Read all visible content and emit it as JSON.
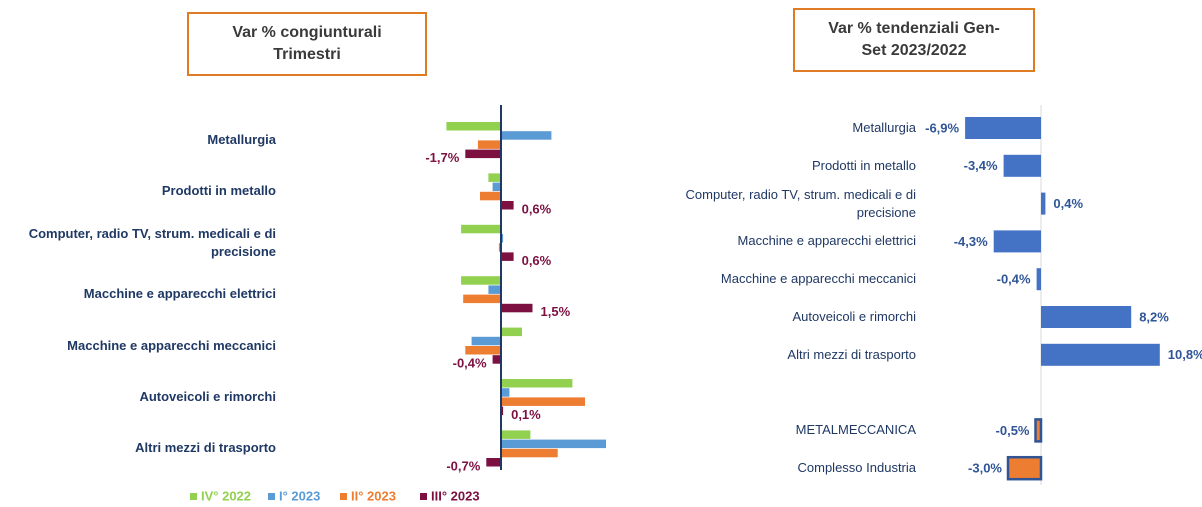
{
  "chart_data": [
    {
      "type": "bar",
      "orientation": "horizontal",
      "title": "Var % congiunturali Trimestri",
      "categories": [
        "Metallurgia",
        "Prodotti in metallo",
        "Computer, radio TV, strum. medicali e di precisione",
        "Macchine e apparecchi elettrici",
        "Macchine e apparecchi meccanici",
        "Autoveicoli e rimorchi",
        "Altri mezzi di trasporto"
      ],
      "series": [
        {
          "name": "IV° 2022",
          "color": "#92d050",
          "values": [
            -2.6,
            -0.6,
            -1.9,
            -1.9,
            1.0,
            3.4,
            1.4
          ]
        },
        {
          "name": "I° 2023",
          "color": "#5b9bd5",
          "values": [
            2.4,
            -0.4,
            0.1,
            -0.6,
            -1.4,
            0.4,
            5.0
          ]
        },
        {
          "name": "II° 2023",
          "color": "#ed7d31",
          "values": [
            -1.1,
            -1.0,
            -0.1,
            -1.8,
            -1.7,
            4.0,
            2.7
          ]
        },
        {
          "name": "III° 2023",
          "color": "#7b1041",
          "values": [
            -1.7,
            0.6,
            0.6,
            1.5,
            -0.4,
            0.1,
            -0.7
          ],
          "value_labels": [
            "-1,7%",
            "0,6%",
            "0,6%",
            "1,5%",
            "-0,4%",
            "0,1%",
            "-0,7%"
          ]
        }
      ],
      "xlim": [
        -5,
        7
      ],
      "legend": "bottom"
    },
    {
      "type": "bar",
      "orientation": "horizontal",
      "title": "Var % tendenziali Gen-Set 2023/2022",
      "categories": [
        "Metallurgia",
        "Prodotti in metallo",
        "Computer, radio TV, strum. medicali e di precisione",
        "Macchine e apparecchi elettrici",
        "Macchine e apparecchi meccanici",
        "Autoveicoli e rimorchi",
        "Altri mezzi di trasporto",
        null,
        "METALMECCANICA",
        "Complesso Industria"
      ],
      "values": [
        -6.9,
        -3.4,
        0.4,
        -4.3,
        -0.4,
        8.2,
        10.8,
        null,
        -0.5,
        -3.0
      ],
      "value_labels": [
        "-6,9%",
        "-3,4%",
        "0,4%",
        "-4,3%",
        "-0,4%",
        "8,2%",
        "10,8%",
        null,
        "-0,5%",
        "-3,0%"
      ],
      "colors": [
        "#4472c4",
        "#4472c4",
        "#4472c4",
        "#4472c4",
        "#4472c4",
        "#4472c4",
        "#4472c4",
        null,
        "#ed7d31",
        "#ed7d31"
      ],
      "xlim": [
        -8,
        12
      ]
    }
  ]
}
